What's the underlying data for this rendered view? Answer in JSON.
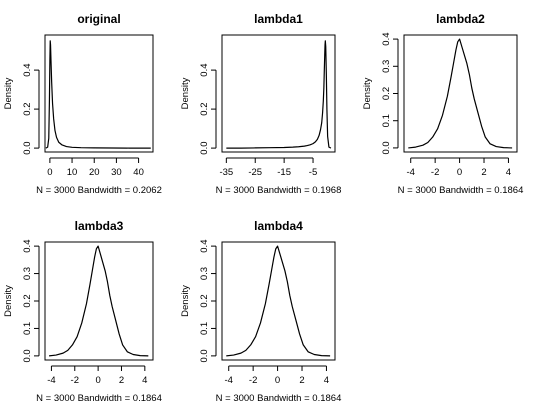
{
  "chart_data": [
    {
      "type": "line",
      "title": "original",
      "xlabel": "N = 3000   Bandwidth = 0.2062",
      "ylabel": "Density",
      "xlim": [
        -2.2,
        46.5
      ],
      "ylim": [
        -0.02,
        0.58
      ],
      "xticks": [
        0,
        10,
        20,
        30,
        40
      ],
      "yticks": [
        0.0,
        0.2,
        0.4
      ],
      "series": [
        {
          "x": [
            -1.8,
            -1.0,
            -0.5,
            -0.2,
            0.0,
            0.15,
            0.3,
            0.5,
            0.8,
            1.2,
            1.7,
            2.3,
            3.0,
            4.0,
            5.5,
            7.5,
            10.0,
            14.0,
            20.0,
            28.0,
            36.0,
            45.5
          ],
          "y": [
            0.0,
            0.005,
            0.05,
            0.25,
            0.45,
            0.55,
            0.53,
            0.45,
            0.34,
            0.23,
            0.15,
            0.09,
            0.055,
            0.03,
            0.016,
            0.008,
            0.004,
            0.002,
            0.001,
            0.0005,
            0.0,
            0.0
          ]
        }
      ]
    },
    {
      "type": "line",
      "title": "lambda1",
      "xlabel": "N = 3000   Bandwidth = 0.1968",
      "ylabel": "Density",
      "xlim": [
        -36.5,
        2.6
      ],
      "ylim": [
        -0.02,
        0.58
      ],
      "xticks": [
        -35,
        -25,
        -15,
        -5
      ],
      "yticks": [
        0.0,
        0.2,
        0.4
      ],
      "series": [
        {
          "x": [
            -35.0,
            -30.0,
            -25.0,
            -20.0,
            -15.0,
            -12.0,
            -10.0,
            -8.0,
            -7.0,
            -6.0,
            -5.0,
            -4.2,
            -3.5,
            -2.9,
            -2.4,
            -2.0,
            -1.7,
            -1.45,
            -1.25,
            -1.1,
            -0.95,
            -0.85,
            -0.75,
            -0.6,
            -0.4,
            -0.2,
            0.05,
            0.5,
            1.2
          ],
          "y": [
            0.0,
            0.0,
            0.001,
            0.002,
            0.003,
            0.005,
            0.007,
            0.01,
            0.013,
            0.017,
            0.023,
            0.032,
            0.045,
            0.065,
            0.095,
            0.13,
            0.18,
            0.24,
            0.31,
            0.4,
            0.48,
            0.53,
            0.55,
            0.52,
            0.38,
            0.2,
            0.06,
            0.005,
            0.0
          ]
        }
      ]
    },
    {
      "type": "line",
      "title": "lambda2",
      "xlabel": "N = 3000   Bandwidth = 0.1864",
      "ylabel": "Density",
      "xlim": [
        -4.55,
        4.7
      ],
      "ylim": [
        -0.015,
        0.415
      ],
      "xticks": [
        -4,
        -2,
        0,
        2,
        4
      ],
      "yticks": [
        0.0,
        0.1,
        0.2,
        0.3,
        0.4
      ],
      "series": [
        {
          "x": [
            -4.2,
            -3.6,
            -3.0,
            -2.6,
            -2.2,
            -1.8,
            -1.4,
            -1.0,
            -0.7,
            -0.5,
            -0.3,
            -0.15,
            0.0,
            0.2,
            0.4,
            0.6,
            0.8,
            1.0,
            1.2,
            1.5,
            1.8,
            2.1,
            2.5,
            3.0,
            3.6,
            4.3
          ],
          "y": [
            0.0,
            0.003,
            0.01,
            0.02,
            0.04,
            0.07,
            0.12,
            0.19,
            0.26,
            0.31,
            0.36,
            0.39,
            0.4,
            0.37,
            0.34,
            0.31,
            0.27,
            0.22,
            0.18,
            0.13,
            0.08,
            0.04,
            0.015,
            0.005,
            0.001,
            0.0
          ]
        }
      ]
    },
    {
      "type": "line",
      "title": "lambda3",
      "xlabel": "N = 3000   Bandwidth = 0.1864",
      "ylabel": "Density",
      "xlim": [
        -4.55,
        4.7
      ],
      "ylim": [
        -0.015,
        0.415
      ],
      "xticks": [
        -4,
        -2,
        0,
        2,
        4
      ],
      "yticks": [
        0.0,
        0.1,
        0.2,
        0.3,
        0.4
      ],
      "series": [
        {
          "x": [
            -4.2,
            -3.6,
            -3.0,
            -2.6,
            -2.2,
            -1.8,
            -1.4,
            -1.0,
            -0.7,
            -0.5,
            -0.3,
            -0.15,
            0.0,
            0.2,
            0.4,
            0.6,
            0.8,
            1.0,
            1.2,
            1.5,
            1.8,
            2.1,
            2.5,
            3.0,
            3.6,
            4.3
          ],
          "y": [
            0.0,
            0.003,
            0.01,
            0.02,
            0.04,
            0.07,
            0.12,
            0.19,
            0.26,
            0.31,
            0.36,
            0.39,
            0.4,
            0.37,
            0.34,
            0.31,
            0.27,
            0.22,
            0.18,
            0.13,
            0.08,
            0.04,
            0.015,
            0.005,
            0.001,
            0.0
          ]
        }
      ]
    },
    {
      "type": "line",
      "title": "lambda4",
      "xlabel": "N = 3000   Bandwidth = 0.1864",
      "ylabel": "Density",
      "xlim": [
        -4.55,
        4.7
      ],
      "ylim": [
        -0.015,
        0.415
      ],
      "xticks": [
        -4,
        -2,
        0,
        2,
        4
      ],
      "yticks": [
        0.0,
        0.1,
        0.2,
        0.3,
        0.4
      ],
      "series": [
        {
          "x": [
            -4.2,
            -3.6,
            -3.0,
            -2.6,
            -2.2,
            -1.8,
            -1.4,
            -1.0,
            -0.7,
            -0.5,
            -0.3,
            -0.15,
            0.0,
            0.2,
            0.4,
            0.6,
            0.8,
            1.0,
            1.2,
            1.5,
            1.8,
            2.1,
            2.5,
            3.0,
            3.6,
            4.3
          ],
          "y": [
            0.0,
            0.003,
            0.01,
            0.02,
            0.04,
            0.07,
            0.12,
            0.19,
            0.26,
            0.31,
            0.36,
            0.39,
            0.4,
            0.37,
            0.34,
            0.31,
            0.27,
            0.22,
            0.18,
            0.13,
            0.08,
            0.04,
            0.015,
            0.005,
            0.001,
            0.0
          ]
        }
      ]
    }
  ]
}
